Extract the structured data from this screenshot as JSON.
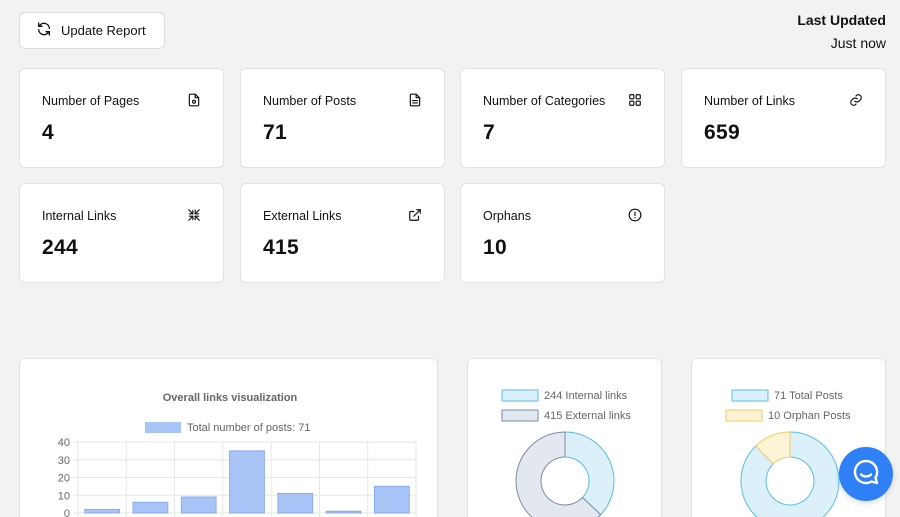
{
  "header": {
    "update_button_label": "Update Report",
    "last_updated_title": "Last Updated",
    "last_updated_value": "Just now"
  },
  "stats": [
    {
      "label": "Number of Pages",
      "value": "4",
      "icon": "page-settings-icon"
    },
    {
      "label": "Number of Posts",
      "value": "71",
      "icon": "document-icon"
    },
    {
      "label": "Number of Categories",
      "value": "7",
      "icon": "grid-icon"
    },
    {
      "label": "Number of Links",
      "value": "659",
      "icon": "link-icon"
    },
    {
      "label": "Internal Links",
      "value": "244",
      "icon": "collapse-arrows-icon"
    },
    {
      "label": "External Links",
      "value": "415",
      "icon": "external-link-icon"
    },
    {
      "label": "Orphans",
      "value": "10",
      "icon": "alert-circle-icon"
    }
  ],
  "colors": {
    "bar_fill": "#a9c5f7",
    "bar_stroke": "#86acf1",
    "internal_fill": "#dcf0fa",
    "internal_stroke": "#58bde8",
    "external_fill": "#e3e7f0",
    "external_stroke": "#7d8aa6",
    "posts_fill": "#dcf0fa",
    "posts_stroke": "#58bde8",
    "orphan_fill": "#fdf3d6",
    "orphan_stroke": "#f3cd62",
    "chat": "#2f80f6"
  },
  "chart_data": [
    {
      "type": "bar",
      "title": "Overall links visualization",
      "series": [
        {
          "name": "Total number of posts: 71",
          "values": [
            2,
            6,
            9,
            35,
            11,
            1,
            15
          ]
        }
      ],
      "ylim": [
        0,
        40
      ],
      "yticks": [
        "0",
        "10",
        "20",
        "30",
        "40"
      ],
      "grid": true,
      "legend": "top"
    },
    {
      "type": "pie",
      "labels": [
        "244 Internal links",
        "415 External links"
      ],
      "values": [
        244,
        415
      ],
      "legend": "top"
    },
    {
      "type": "pie",
      "labels": [
        "71 Total  Posts",
        "10 Orphan  Posts"
      ],
      "values": [
        71,
        10
      ],
      "legend": "top"
    }
  ]
}
